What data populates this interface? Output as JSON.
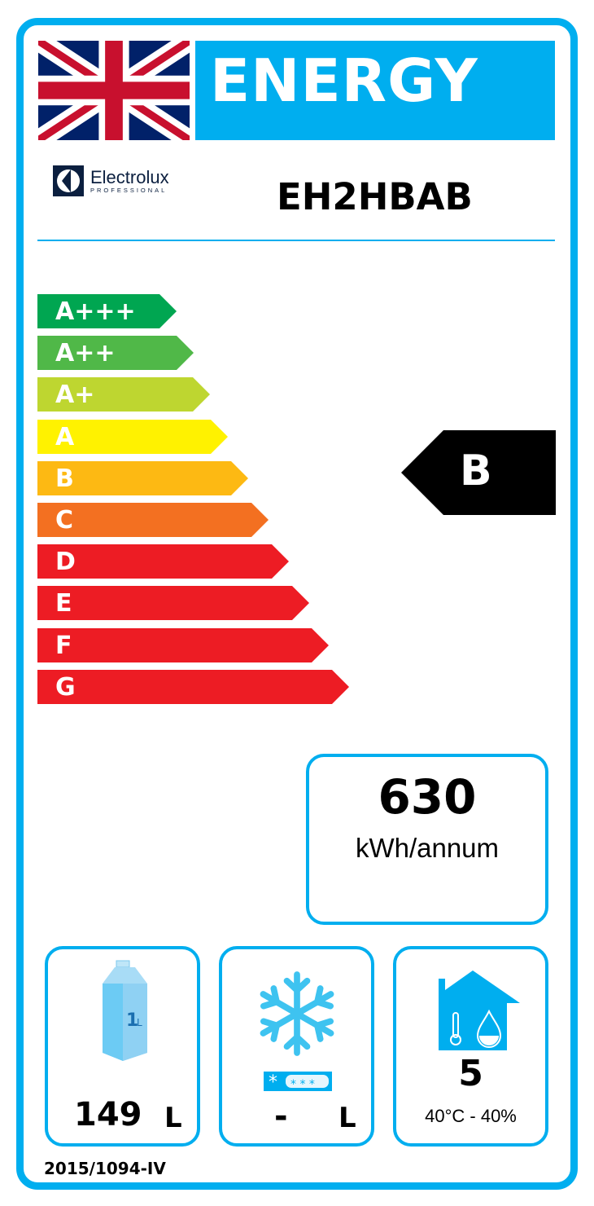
{
  "header": {
    "title": "ENERGY",
    "flag": "uk-flag-icon"
  },
  "brand": {
    "name": "Electrolux",
    "sub": "PROFESSIONAL"
  },
  "model": "EH2HBAB",
  "scale": [
    {
      "label": "A+++",
      "color": "#00a651"
    },
    {
      "label": "A++",
      "color": "#50b848"
    },
    {
      "label": "A+",
      "color": "#bed630"
    },
    {
      "label": "A",
      "color": "#fff200"
    },
    {
      "label": "B",
      "color": "#fdb913"
    },
    {
      "label": "C",
      "color": "#f37021"
    },
    {
      "label": "D",
      "color": "#ed1c24"
    },
    {
      "label": "E",
      "color": "#ed1c24"
    },
    {
      "label": "F",
      "color": "#ed1c24"
    },
    {
      "label": "G",
      "color": "#ed1c24"
    }
  ],
  "rating": "B",
  "consumption": {
    "value": "630",
    "unit": "kWh/annum"
  },
  "fresh": {
    "value": "149",
    "unit": "L",
    "icon": "milk-carton-icon",
    "icon_text": "1L"
  },
  "frozen": {
    "value": "-",
    "unit": "L",
    "icon": "snowflake-icon"
  },
  "climate": {
    "value": "5",
    "conditions": "40°C - 40%",
    "icon": "house-climate-icon"
  },
  "regulation": "2015/1094-IV",
  "colors": {
    "accent": "#00aeef"
  }
}
